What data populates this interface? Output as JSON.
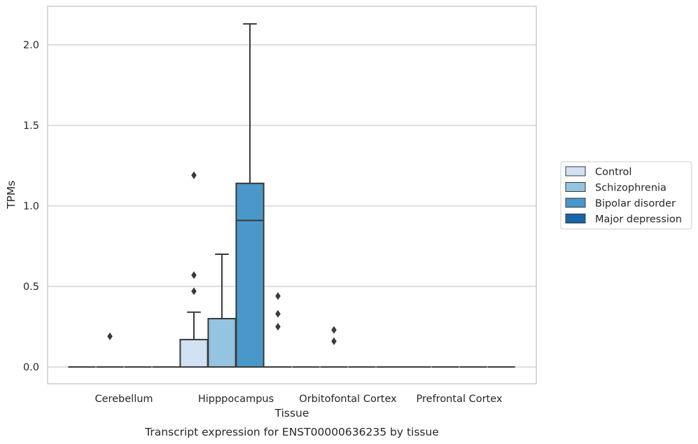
{
  "chart_data": {
    "type": "box",
    "title": "",
    "caption": "Transcript expression for ENST00000636235 by tissue",
    "xlabel": "Tissue",
    "ylabel": "TPMs",
    "ylim": [
      -0.1,
      2.25
    ],
    "yticks": [
      "0.0",
      "0.5",
      "1.0",
      "1.5",
      "2.0"
    ],
    "ytick_values": [
      0.0,
      0.5,
      1.0,
      1.5,
      2.0
    ],
    "grid": "horizontal",
    "legend_position": "right",
    "categories": [
      "Cerebellum",
      "Hipppocampus",
      "Orbitofontal Cortex",
      "Prefrontal Cortex"
    ],
    "series": [
      {
        "name": "Control",
        "color": "#d0e1f2",
        "boxes": [
          {
            "q1": 0,
            "median": 0,
            "q3": 0,
            "whisker_low": 0,
            "whisker_high": 0,
            "outliers": []
          },
          {
            "q1": 0,
            "median": 0,
            "q3": 0.17,
            "whisker_low": 0,
            "whisker_high": 0.34,
            "outliers": [
              0.47,
              0.57,
              1.19
            ]
          },
          {
            "q1": 0,
            "median": 0,
            "q3": 0,
            "whisker_low": 0,
            "whisker_high": 0,
            "outliers": []
          },
          {
            "q1": 0,
            "median": 0,
            "q3": 0,
            "whisker_low": 0,
            "whisker_high": 0,
            "outliers": []
          }
        ]
      },
      {
        "name": "Schizophrenia",
        "color": "#94c4df",
        "boxes": [
          {
            "q1": 0,
            "median": 0,
            "q3": 0,
            "whisker_low": 0,
            "whisker_high": 0,
            "outliers": [
              0.19
            ]
          },
          {
            "q1": 0,
            "median": 0,
            "q3": 0.3,
            "whisker_low": 0,
            "whisker_high": 0.7,
            "outliers": []
          },
          {
            "q1": 0,
            "median": 0,
            "q3": 0,
            "whisker_low": 0,
            "whisker_high": 0,
            "outliers": [
              0.16,
              0.23
            ]
          },
          {
            "q1": 0,
            "median": 0,
            "q3": 0,
            "whisker_low": 0,
            "whisker_high": 0,
            "outliers": []
          }
        ]
      },
      {
        "name": "Bipolar disorder",
        "color": "#4a98c9",
        "boxes": [
          {
            "q1": 0,
            "median": 0,
            "q3": 0,
            "whisker_low": 0,
            "whisker_high": 0,
            "outliers": []
          },
          {
            "q1": 0,
            "median": 0.91,
            "q3": 1.14,
            "whisker_low": 0,
            "whisker_high": 2.13,
            "outliers": []
          },
          {
            "q1": 0,
            "median": 0,
            "q3": 0,
            "whisker_low": 0,
            "whisker_high": 0,
            "outliers": []
          },
          {
            "q1": 0,
            "median": 0,
            "q3": 0,
            "whisker_low": 0,
            "whisker_high": 0,
            "outliers": []
          }
        ]
      },
      {
        "name": "Major depression",
        "color": "#1764ab",
        "boxes": [
          {
            "q1": 0,
            "median": 0,
            "q3": 0,
            "whisker_low": 0,
            "whisker_high": 0,
            "outliers": []
          },
          {
            "q1": 0,
            "median": 0,
            "q3": 0,
            "whisker_low": 0,
            "whisker_high": 0,
            "outliers": [
              0.25,
              0.33,
              0.44
            ]
          },
          {
            "q1": 0,
            "median": 0,
            "q3": 0,
            "whisker_low": 0,
            "whisker_high": 0,
            "outliers": []
          },
          {
            "q1": 0,
            "median": 0,
            "q3": 0,
            "whisker_low": 0,
            "whisker_high": 0,
            "outliers": []
          }
        ]
      }
    ]
  }
}
